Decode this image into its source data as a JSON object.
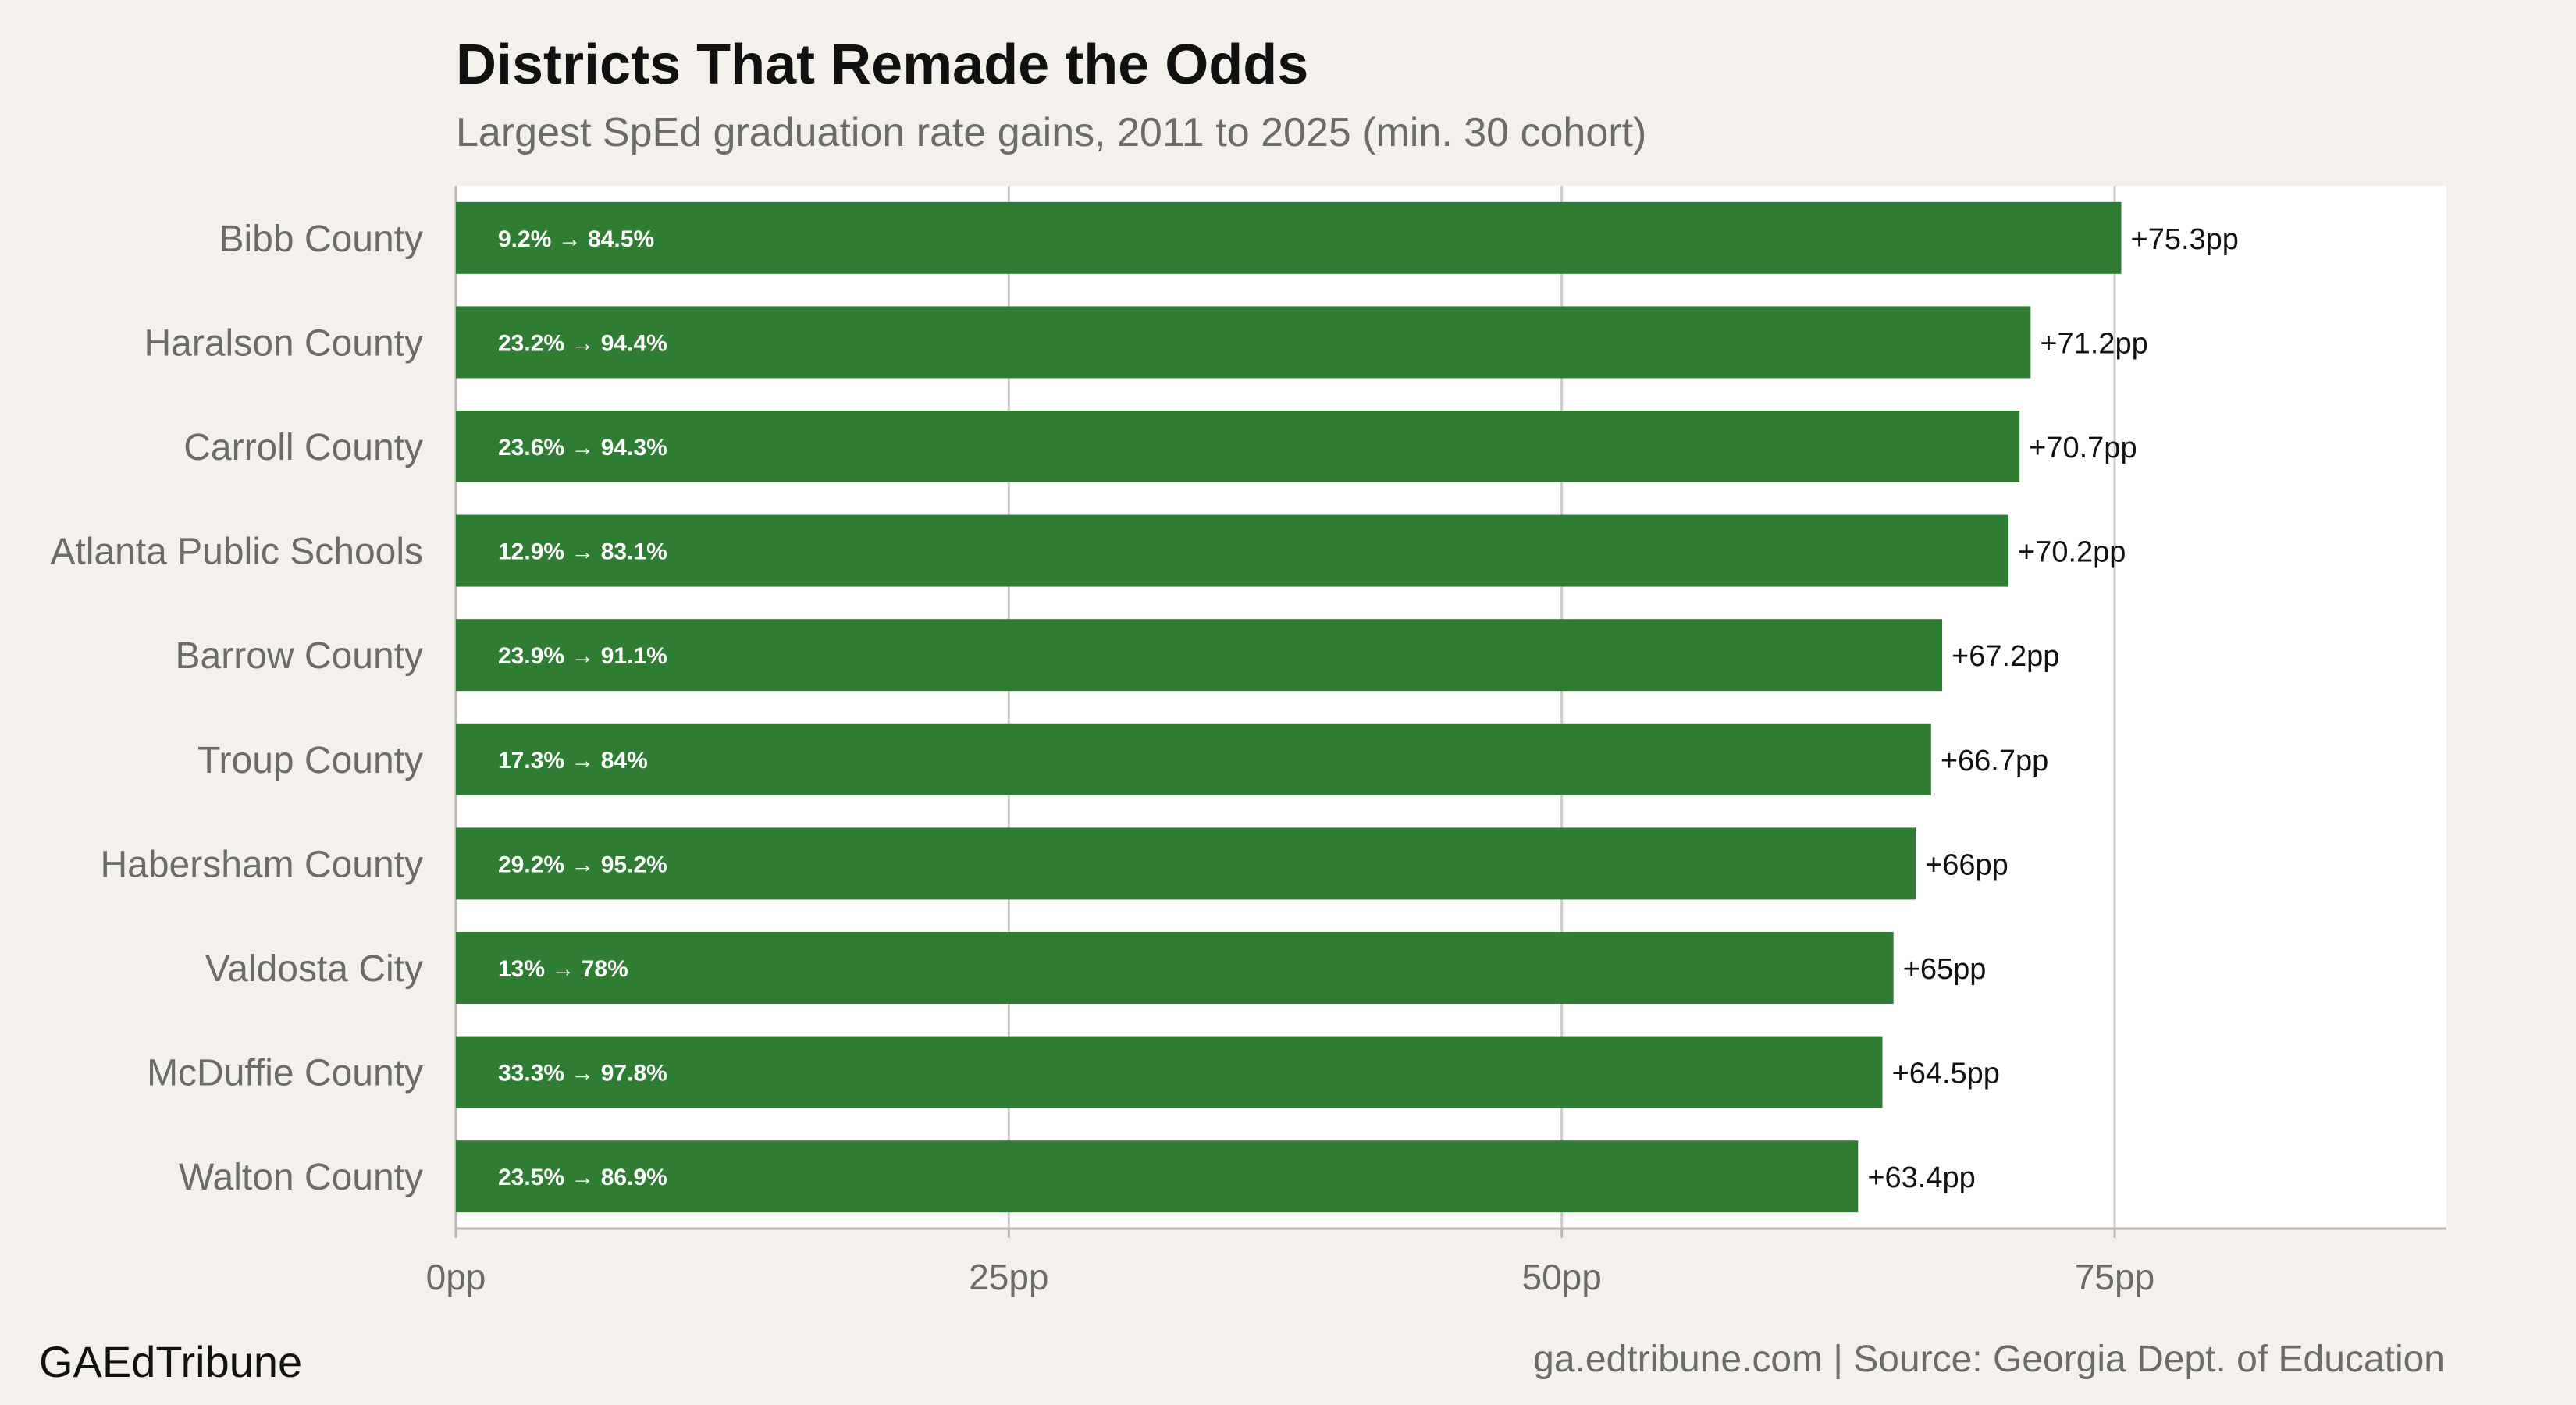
{
  "chart_data": {
    "type": "bar",
    "orientation": "horizontal",
    "title": "Districts That Remade the Odds",
    "subtitle": "Largest SpEd graduation rate gains, 2011 to 2025 (min. 30 cohort)",
    "xlabel": "",
    "ylabel": "",
    "xlim": [
      0,
      90
    ],
    "x_ticks": [
      0,
      25,
      50,
      75
    ],
    "x_tick_labels": [
      "0pp",
      "25pp",
      "50pp",
      "75pp"
    ],
    "grid": true,
    "categories": [
      "Bibb County",
      "Haralson County",
      "Carroll County",
      "Atlanta Public Schools",
      "Barrow County",
      "Troup County",
      "Habersham County",
      "Valdosta City",
      "McDuffie County",
      "Walton County"
    ],
    "values": [
      75.3,
      71.2,
      70.7,
      70.2,
      67.2,
      66.7,
      66,
      65,
      64.5,
      63.4
    ],
    "value_labels": [
      "+75.3pp",
      "+71.2pp",
      "+70.7pp",
      "+70.2pp",
      "+67.2pp",
      "+66.7pp",
      "+66pp",
      "+65pp",
      "+64.5pp",
      "+63.4pp"
    ],
    "inner_labels": [
      "9.2% → 84.5%",
      "23.2% → 94.4%",
      "23.6% → 94.3%",
      "12.9% → 83.1%",
      "23.9% → 91.1%",
      "17.3% → 84%",
      "29.2% → 95.2%",
      "13% → 78%",
      "33.3% → 97.8%",
      "23.5% → 86.9%"
    ],
    "colors": {
      "bar": "#2e7d32",
      "panel": "#ffffff",
      "background": "#f4f1ec",
      "grid": "#cfcac4"
    }
  },
  "footer": {
    "brand": "GAEdTribune",
    "source": "ga.edtribune.com | Source: Georgia Dept. of Education"
  }
}
